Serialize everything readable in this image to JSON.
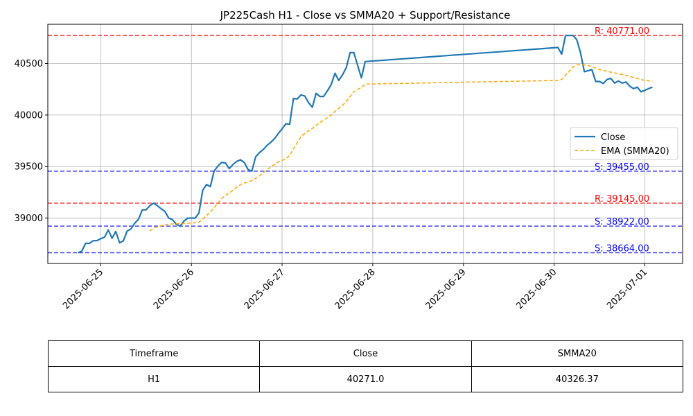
{
  "chart_data": {
    "type": "line",
    "title": "JP225Cash H1 - Close vs SMMA20 + Support/Resistance",
    "xlabel": "",
    "ylabel": "",
    "x_tick_labels": [
      "2025-06-25",
      "2025-06-26",
      "2025-06-27",
      "2025-06-28",
      "2025-06-29",
      "2025-06-30",
      "2025-07-01"
    ],
    "x_range": [
      "2025-06-24T10:00",
      "2025-07-01T10:00"
    ],
    "y_ticks": [
      39000,
      39500,
      40000,
      40500
    ],
    "ylim": [
      38560,
      40880
    ],
    "grid": true,
    "legend_position": "center-right",
    "series": [
      {
        "name": "Close",
        "color": "#1f77b4",
        "style": "solid",
        "points": [
          [
            "2025-06-24T18:00",
            38664
          ],
          [
            "2025-06-24T19:00",
            38680
          ],
          [
            "2025-06-24T20:00",
            38755
          ],
          [
            "2025-06-24T21:00",
            38755
          ],
          [
            "2025-06-24T22:00",
            38780
          ],
          [
            "2025-06-24T23:00",
            38782
          ],
          [
            "2025-06-25T00:00",
            38800
          ],
          [
            "2025-06-25T01:00",
            38815
          ],
          [
            "2025-06-25T02:00",
            38885
          ],
          [
            "2025-06-25T03:00",
            38805
          ],
          [
            "2025-06-25T04:00",
            38870
          ],
          [
            "2025-06-25T05:00",
            38760
          ],
          [
            "2025-06-25T06:00",
            38780
          ],
          [
            "2025-06-25T07:00",
            38875
          ],
          [
            "2025-06-25T08:00",
            38895
          ],
          [
            "2025-06-25T09:00",
            38950
          ],
          [
            "2025-06-25T10:00",
            38990
          ],
          [
            "2025-06-25T11:00",
            39080
          ],
          [
            "2025-06-25T12:00",
            39080
          ],
          [
            "2025-06-25T13:00",
            39120
          ],
          [
            "2025-06-25T14:00",
            39145
          ],
          [
            "2025-06-25T15:00",
            39120
          ],
          [
            "2025-06-25T16:00",
            39090
          ],
          [
            "2025-06-25T17:00",
            39065
          ],
          [
            "2025-06-25T18:00",
            39000
          ],
          [
            "2025-06-25T19:00",
            38985
          ],
          [
            "2025-06-25T20:00",
            38940
          ],
          [
            "2025-06-25T21:00",
            38922
          ],
          [
            "2025-06-25T22:00",
            38970
          ],
          [
            "2025-06-25T23:00",
            39000
          ],
          [
            "2025-06-26T00:00",
            39000
          ],
          [
            "2025-06-26T01:00",
            39000
          ],
          [
            "2025-06-26T02:00",
            39050
          ],
          [
            "2025-06-26T03:00",
            39270
          ],
          [
            "2025-06-26T04:00",
            39325
          ],
          [
            "2025-06-26T05:00",
            39305
          ],
          [
            "2025-06-26T06:00",
            39455
          ],
          [
            "2025-06-26T07:00",
            39505
          ],
          [
            "2025-06-26T08:00",
            39540
          ],
          [
            "2025-06-26T09:00",
            39535
          ],
          [
            "2025-06-26T10:00",
            39480
          ],
          [
            "2025-06-26T11:00",
            39520
          ],
          [
            "2025-06-26T12:00",
            39550
          ],
          [
            "2025-06-26T13:00",
            39565
          ],
          [
            "2025-06-26T14:00",
            39540
          ],
          [
            "2025-06-26T15:00",
            39470
          ],
          [
            "2025-06-26T16:00",
            39455
          ],
          [
            "2025-06-26T17:00",
            39595
          ],
          [
            "2025-06-26T18:00",
            39635
          ],
          [
            "2025-06-26T19:00",
            39665
          ],
          [
            "2025-06-26T20:00",
            39705
          ],
          [
            "2025-06-26T21:00",
            39735
          ],
          [
            "2025-06-26T22:00",
            39770
          ],
          [
            "2025-06-26T23:00",
            39820
          ],
          [
            "2025-06-27T00:00",
            39865
          ],
          [
            "2025-06-27T01:00",
            39915
          ],
          [
            "2025-06-27T02:00",
            39910
          ],
          [
            "2025-06-27T03:00",
            40160
          ],
          [
            "2025-06-27T04:00",
            40155
          ],
          [
            "2025-06-27T05:00",
            40195
          ],
          [
            "2025-06-27T06:00",
            40185
          ],
          [
            "2025-06-27T07:00",
            40120
          ],
          [
            "2025-06-27T08:00",
            40075
          ],
          [
            "2025-06-27T09:00",
            40210
          ],
          [
            "2025-06-27T10:00",
            40180
          ],
          [
            "2025-06-27T11:00",
            40180
          ],
          [
            "2025-06-27T12:00",
            40235
          ],
          [
            "2025-06-27T13:00",
            40295
          ],
          [
            "2025-06-27T14:00",
            40405
          ],
          [
            "2025-06-27T15:00",
            40335
          ],
          [
            "2025-06-27T16:00",
            40390
          ],
          [
            "2025-06-27T17:00",
            40460
          ],
          [
            "2025-06-27T18:00",
            40605
          ],
          [
            "2025-06-27T19:00",
            40605
          ],
          [
            "2025-06-27T20:00",
            40480
          ],
          [
            "2025-06-27T21:00",
            40360
          ],
          [
            "2025-06-27T22:00",
            40518
          ],
          [
            "2025-06-30T01:00",
            40655
          ],
          [
            "2025-06-30T02:00",
            40590
          ],
          [
            "2025-06-30T03:00",
            40771
          ],
          [
            "2025-06-30T04:00",
            40771
          ],
          [
            "2025-06-30T05:00",
            40771
          ],
          [
            "2025-06-30T06:00",
            40730
          ],
          [
            "2025-06-30T07:00",
            40600
          ],
          [
            "2025-06-30T08:00",
            40420
          ],
          [
            "2025-06-30T09:00",
            40430
          ],
          [
            "2025-06-30T10:00",
            40440
          ],
          [
            "2025-06-30T11:00",
            40325
          ],
          [
            "2025-06-30T12:00",
            40325
          ],
          [
            "2025-06-30T13:00",
            40305
          ],
          [
            "2025-06-30T14:00",
            40345
          ],
          [
            "2025-06-30T15:00",
            40355
          ],
          [
            "2025-06-30T16:00",
            40310
          ],
          [
            "2025-06-30T17:00",
            40330
          ],
          [
            "2025-06-30T18:00",
            40310
          ],
          [
            "2025-06-30T19:00",
            40320
          ],
          [
            "2025-06-30T20:00",
            40280
          ],
          [
            "2025-06-30T21:00",
            40255
          ],
          [
            "2025-06-30T22:00",
            40270
          ],
          [
            "2025-06-30T23:00",
            40225
          ],
          [
            "2025-07-01T00:00",
            40240
          ],
          [
            "2025-07-01T01:00",
            40255
          ],
          [
            "2025-07-01T02:00",
            40271
          ]
        ]
      },
      {
        "name": "EMA (SMMA20)",
        "color": "#ffa500",
        "style": "dashed",
        "points": [
          [
            "2025-06-25T13:00",
            38875
          ],
          [
            "2025-06-25T14:00",
            38905
          ],
          [
            "2025-06-25T15:00",
            38915
          ],
          [
            "2025-06-25T16:00",
            38925
          ],
          [
            "2025-06-25T17:00",
            38935
          ],
          [
            "2025-06-25T18:00",
            38940
          ],
          [
            "2025-06-25T19:00",
            38943
          ],
          [
            "2025-06-25T20:00",
            38945
          ],
          [
            "2025-06-25T21:00",
            38945
          ],
          [
            "2025-06-25T22:00",
            38947
          ],
          [
            "2025-06-25T23:00",
            38950
          ],
          [
            "2025-06-26T00:00",
            38952
          ],
          [
            "2025-06-26T01:00",
            38955
          ],
          [
            "2025-06-26T02:00",
            38960
          ],
          [
            "2025-06-26T03:00",
            38990
          ],
          [
            "2025-06-26T04:00",
            39025
          ],
          [
            "2025-06-26T05:00",
            39060
          ],
          [
            "2025-06-26T06:00",
            39100
          ],
          [
            "2025-06-26T07:00",
            39145
          ],
          [
            "2025-06-26T08:00",
            39190
          ],
          [
            "2025-06-26T09:00",
            39220
          ],
          [
            "2025-06-26T10:00",
            39245
          ],
          [
            "2025-06-26T11:00",
            39270
          ],
          [
            "2025-06-26T12:00",
            39300
          ],
          [
            "2025-06-26T13:00",
            39325
          ],
          [
            "2025-06-26T14:00",
            39340
          ],
          [
            "2025-06-26T15:00",
            39350
          ],
          [
            "2025-06-26T16:00",
            39365
          ],
          [
            "2025-06-26T17:00",
            39385
          ],
          [
            "2025-06-26T18:00",
            39410
          ],
          [
            "2025-06-26T19:00",
            39440
          ],
          [
            "2025-06-26T20:00",
            39470
          ],
          [
            "2025-06-26T21:00",
            39495
          ],
          [
            "2025-06-26T22:00",
            39520
          ],
          [
            "2025-06-26T23:00",
            39545
          ],
          [
            "2025-06-27T00:00",
            39560
          ],
          [
            "2025-06-27T01:00",
            39575
          ],
          [
            "2025-06-27T02:00",
            39610
          ],
          [
            "2025-06-27T03:00",
            39670
          ],
          [
            "2025-06-27T04:00",
            39730
          ],
          [
            "2025-06-27T05:00",
            39790
          ],
          [
            "2025-06-27T06:00",
            39820
          ],
          [
            "2025-06-27T07:00",
            39845
          ],
          [
            "2025-06-27T08:00",
            39870
          ],
          [
            "2025-06-27T09:00",
            39900
          ],
          [
            "2025-06-27T10:00",
            39925
          ],
          [
            "2025-06-27T11:00",
            39950
          ],
          [
            "2025-06-27T12:00",
            39975
          ],
          [
            "2025-06-27T13:00",
            40000
          ],
          [
            "2025-06-27T14:00",
            40035
          ],
          [
            "2025-06-27T15:00",
            40065
          ],
          [
            "2025-06-27T16:00",
            40095
          ],
          [
            "2025-06-27T17:00",
            40130
          ],
          [
            "2025-06-27T18:00",
            40180
          ],
          [
            "2025-06-27T19:00",
            40225
          ],
          [
            "2025-06-27T20:00",
            40250
          ],
          [
            "2025-06-27T21:00",
            40265
          ],
          [
            "2025-06-27T22:00",
            40300
          ],
          [
            "2025-06-30T01:00",
            40335
          ],
          [
            "2025-06-30T02:00",
            40345
          ],
          [
            "2025-06-30T03:00",
            40385
          ],
          [
            "2025-06-30T04:00",
            40425
          ],
          [
            "2025-06-30T05:00",
            40465
          ],
          [
            "2025-06-30T06:00",
            40485
          ],
          [
            "2025-06-30T07:00",
            40490
          ],
          [
            "2025-06-30T08:00",
            40485
          ],
          [
            "2025-06-30T09:00",
            40480
          ],
          [
            "2025-06-30T10:00",
            40470
          ],
          [
            "2025-06-30T11:00",
            40455
          ],
          [
            "2025-06-30T12:00",
            40440
          ],
          [
            "2025-06-30T13:00",
            40430
          ],
          [
            "2025-06-30T14:00",
            40425
          ],
          [
            "2025-06-30T15:00",
            40415
          ],
          [
            "2025-06-30T16:00",
            40408
          ],
          [
            "2025-06-30T17:00",
            40400
          ],
          [
            "2025-06-30T18:00",
            40393
          ],
          [
            "2025-06-30T19:00",
            40385
          ],
          [
            "2025-06-30T20:00",
            40375
          ],
          [
            "2025-06-30T21:00",
            40365
          ],
          [
            "2025-06-30T22:00",
            40355
          ],
          [
            "2025-06-30T23:00",
            40343
          ],
          [
            "2025-07-01T00:00",
            40336
          ],
          [
            "2025-07-01T01:00",
            40331
          ],
          [
            "2025-07-01T02:00",
            40326.37
          ]
        ]
      }
    ],
    "levels": [
      {
        "type": "resistance",
        "value": 40771,
        "label": "R: 40771.00",
        "color": "#ff0000"
      },
      {
        "type": "support",
        "value": 39455,
        "label": "S: 39455.00",
        "color": "#0000ff"
      },
      {
        "type": "resistance",
        "value": 39145,
        "label": "R: 39145.00",
        "color": "#ff0000"
      },
      {
        "type": "support",
        "value": 38922,
        "label": "S: 38922.00",
        "color": "#0000ff"
      },
      {
        "type": "support",
        "value": 38664,
        "label": "S: 38664.00",
        "color": "#0000ff"
      }
    ]
  },
  "table": {
    "headers": [
      "Timeframe",
      "Close",
      "SMMA20"
    ],
    "row": [
      "H1",
      "40271.0",
      "40326.37"
    ]
  }
}
